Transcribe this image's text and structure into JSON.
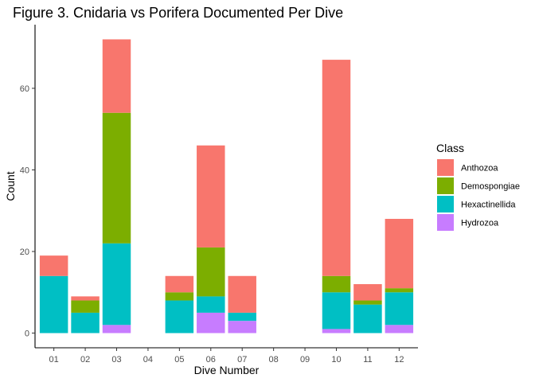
{
  "chart_data": {
    "type": "bar",
    "stacked": true,
    "title": "Figure 3. Cnidaria vs Porifera Documented Per Dive",
    "xlabel": "Dive Number",
    "ylabel": "Count",
    "ylim": [
      0,
      72
    ],
    "yticks": [
      0,
      20,
      40,
      60
    ],
    "grid": false,
    "legend": {
      "title": "Class",
      "position": "right"
    },
    "categories": [
      "01",
      "02",
      "03",
      "04",
      "05",
      "06",
      "07",
      "08",
      "09",
      "10",
      "11",
      "12"
    ],
    "series": [
      {
        "name": "Anthozoa",
        "color": "#F8766D",
        "values": [
          5,
          1,
          18,
          0,
          4,
          25,
          9,
          0,
          0,
          53,
          4,
          17
        ]
      },
      {
        "name": "Demospongiae",
        "color": "#7CAE00",
        "values": [
          0,
          3,
          32,
          0,
          2,
          12,
          0,
          0,
          0,
          4,
          1,
          1
        ]
      },
      {
        "name": "Hexactinellida",
        "color": "#00BFC4",
        "values": [
          14,
          5,
          20,
          0,
          8,
          4,
          2,
          0,
          0,
          9,
          7,
          8
        ]
      },
      {
        "name": "Hydrozoa",
        "color": "#C77CFF",
        "values": [
          0,
          0,
          2,
          0,
          0,
          5,
          3,
          0,
          0,
          1,
          0,
          2
        ]
      }
    ]
  }
}
